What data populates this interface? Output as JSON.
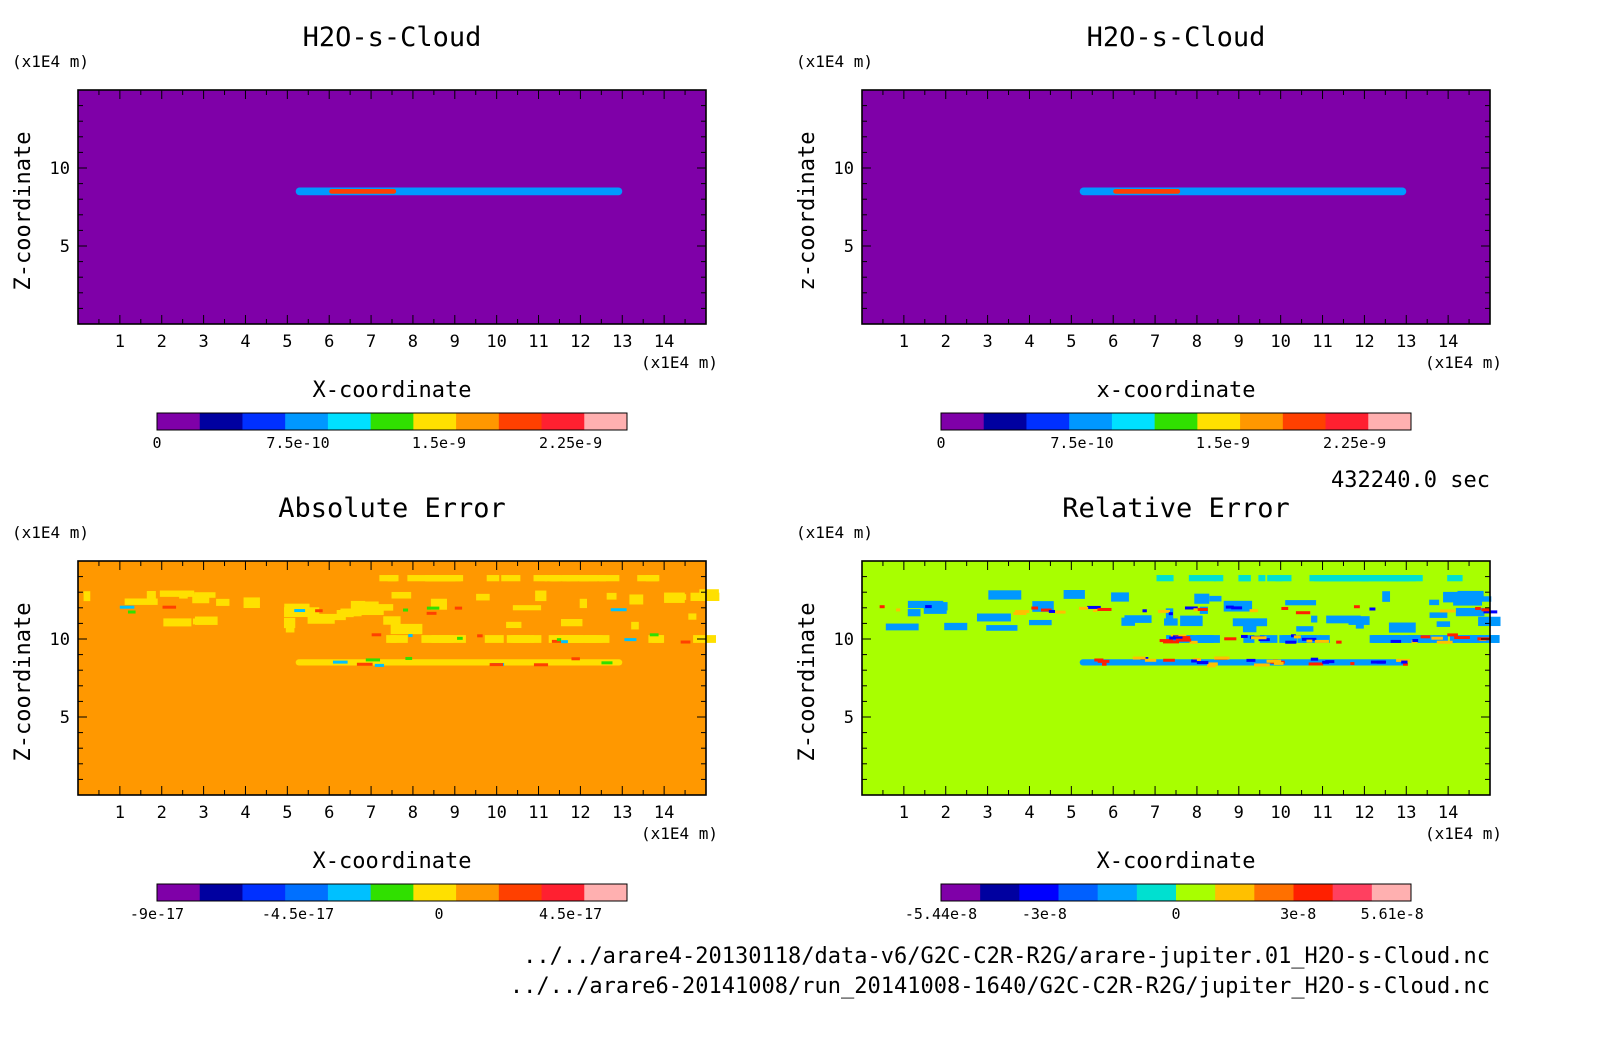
{
  "time_label": "432240.0 sec",
  "files": [
    "../../arare4-20130118/data-v6/G2C-C2R-R2G/arare-jupiter.01_H2O-s-Cloud.nc",
    "../../arare6-20141008/run_20141008-1640/G2C-C2R-R2G/jupiter_H2O-s-Cloud.nc"
  ],
  "chart_data": [
    {
      "type": "heatmap",
      "title": "H2O-s-Cloud",
      "xlabel": "X-coordinate",
      "ylabel": "Z-coordinate",
      "x_unit": "(x1E4 m)",
      "y_unit": "(x1E4 m)",
      "xlim": [
        0,
        15
      ],
      "ylim": [
        0,
        15
      ],
      "x_ticks": [
        1,
        2,
        3,
        4,
        5,
        6,
        7,
        8,
        9,
        10,
        11,
        12,
        13,
        14
      ],
      "y_ticks": [
        5,
        10
      ],
      "background_color": "#7f00a8",
      "colorbar": {
        "ticks": [
          "0",
          "7.5e-10",
          "1.5e-9",
          "2.25e-9"
        ],
        "colors": [
          "#7f00a8",
          "#0000a0",
          "#0030ff",
          "#0098ff",
          "#00e0ff",
          "#30e000",
          "#ffe000",
          "#ff9800",
          "#ff4000",
          "#ff2030",
          "#ffb0b0"
        ]
      },
      "features": [
        {
          "x_range": [
            5.2,
            13.0
          ],
          "z": 8.5,
          "band": 0.25,
          "color": "#0098ff"
        },
        {
          "x_range": [
            6.0,
            7.6
          ],
          "z": 8.5,
          "band": 0.15,
          "color": "#ff4000"
        }
      ]
    },
    {
      "type": "heatmap",
      "title": "H2O-s-Cloud",
      "xlabel": "x-coordinate",
      "ylabel": "z-coordinate",
      "x_unit": "(x1E4 m)",
      "y_unit": "(x1E4 m)",
      "xlim": [
        0,
        15
      ],
      "ylim": [
        0,
        15
      ],
      "x_ticks": [
        1,
        2,
        3,
        4,
        5,
        6,
        7,
        8,
        9,
        10,
        11,
        12,
        13,
        14
      ],
      "y_ticks": [
        5,
        10
      ],
      "background_color": "#7f00a8",
      "colorbar": {
        "ticks": [
          "0",
          "7.5e-10",
          "1.5e-9",
          "2.25e-9"
        ],
        "colors": [
          "#7f00a8",
          "#0000a0",
          "#0030ff",
          "#0098ff",
          "#00e0ff",
          "#30e000",
          "#ffe000",
          "#ff9800",
          "#ff4000",
          "#ff2030",
          "#ffb0b0"
        ]
      },
      "features": [
        {
          "x_range": [
            5.2,
            13.0
          ],
          "z": 8.5,
          "band": 0.25,
          "color": "#0098ff"
        },
        {
          "x_range": [
            6.0,
            7.6
          ],
          "z": 8.5,
          "band": 0.15,
          "color": "#ff4000"
        }
      ]
    },
    {
      "type": "heatmap",
      "title": "Absolute Error",
      "xlabel": "X-coordinate",
      "ylabel": "Z-coordinate",
      "x_unit": "(x1E4 m)",
      "y_unit": "(x1E4 m)",
      "xlim": [
        0,
        15
      ],
      "ylim": [
        0,
        15
      ],
      "x_ticks": [
        1,
        2,
        3,
        4,
        5,
        6,
        7,
        8,
        9,
        10,
        11,
        12,
        13,
        14
      ],
      "y_ticks": [
        5,
        10
      ],
      "background_color": "#ff9800",
      "colorbar": {
        "ticks": [
          "-9e-17",
          "-4.5e-17",
          "0",
          "4.5e-17"
        ],
        "colors": [
          "#7f00a8",
          "#0000a0",
          "#0030ff",
          "#0070ff",
          "#00c0ff",
          "#30e000",
          "#ffe000",
          "#ff9800",
          "#ff4000",
          "#ff2030",
          "#ffb0b0"
        ]
      },
      "features": [
        {
          "x_range": [
            0.1,
            14.9
          ],
          "z": 11.8,
          "band": 0.5,
          "color": "#ffe000"
        },
        {
          "x_range": [
            7.0,
            14.9
          ],
          "z": 10.0,
          "band": 0.25,
          "color": "#ffe000"
        },
        {
          "x_range": [
            7.0,
            14.0
          ],
          "z": 13.9,
          "band": 0.2,
          "color": "#ffe000"
        },
        {
          "x_range": [
            5.2,
            13.0
          ],
          "z": 8.5,
          "band": 0.2,
          "color": "#ffe000"
        }
      ]
    },
    {
      "type": "heatmap",
      "title": "Relative Error",
      "xlabel": "X-coordinate",
      "ylabel": "Z-coordinate",
      "x_unit": "(x1E4 m)",
      "y_unit": "(x1E4 m)",
      "xlim": [
        0,
        15
      ],
      "ylim": [
        0,
        15
      ],
      "x_ticks": [
        1,
        2,
        3,
        4,
        5,
        6,
        7,
        8,
        9,
        10,
        11,
        12,
        13,
        14
      ],
      "y_ticks": [
        5,
        10
      ],
      "background_color": "#a8ff00",
      "colorbar": {
        "ticks": [
          "-5.44e-8",
          "-3e-8",
          "0",
          "3e-8",
          "5.61e-8"
        ],
        "colors": [
          "#7f00a8",
          "#0000a0",
          "#0000ff",
          "#0060ff",
          "#00a0ff",
          "#00e0d0",
          "#a8ff00",
          "#ffc000",
          "#ff7000",
          "#ff2000",
          "#ff4060",
          "#ffb0b0"
        ]
      },
      "features": [
        {
          "x_range": [
            0.1,
            14.9
          ],
          "z": 11.8,
          "band": 0.5,
          "color": "#0098ff"
        },
        {
          "x_range": [
            7.0,
            14.9
          ],
          "z": 10.0,
          "band": 0.25,
          "color": "#0098ff"
        },
        {
          "x_range": [
            7.0,
            14.0
          ],
          "z": 13.9,
          "band": 0.2,
          "color": "#00e0d0"
        },
        {
          "x_range": [
            5.2,
            13.0
          ],
          "z": 8.5,
          "band": 0.2,
          "color": "#0098ff"
        }
      ]
    }
  ]
}
